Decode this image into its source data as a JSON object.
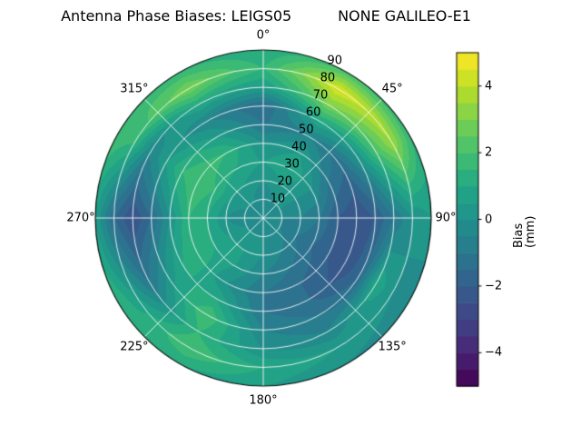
{
  "title": "Antenna Phase Biases: LEIGS05          NONE GALILEO-E1",
  "chart_data": {
    "type": "polar_contour",
    "title": "Antenna Phase Biases: LEIGS05          NONE GALILEO-E1",
    "theta_labels": [
      {
        "text": "0°",
        "angle": 0
      },
      {
        "text": "45°",
        "angle": 45
      },
      {
        "text": "90°",
        "angle": 90
      },
      {
        "text": "135°",
        "angle": 135
      },
      {
        "text": "180°",
        "angle": 180
      },
      {
        "text": "225°",
        "angle": 225
      },
      {
        "text": "270°",
        "angle": 270
      },
      {
        "text": "315°",
        "angle": 315
      }
    ],
    "radial_ticks": {
      "angle_deg": 22.5,
      "max": 90,
      "values": [
        10,
        20,
        30,
        40,
        50,
        60,
        70,
        80,
        90
      ],
      "labels": [
        "10",
        "20",
        "30",
        "40",
        "50",
        "60",
        "70",
        "80",
        "90"
      ]
    },
    "colorbar": {
      "label": "Bias (mm)",
      "min": -5,
      "max": 5,
      "level_step": 0.5,
      "ticks": [
        {
          "value": -4,
          "label": "−4"
        },
        {
          "value": -2,
          "label": "−2"
        },
        {
          "value": 0,
          "label": "0"
        },
        {
          "value": 2,
          "label": "2"
        },
        {
          "value": 4,
          "label": "4"
        }
      ]
    },
    "colormap": {
      "name": "viridis",
      "stops": [
        "#440154",
        "#482475",
        "#414487",
        "#355f8d",
        "#2a788e",
        "#21918c",
        "#22a884",
        "#44bf70",
        "#7ad151",
        "#bddf26",
        "#fde725"
      ]
    },
    "grid": {
      "azimuths_deg": [
        0,
        30,
        60,
        90,
        120,
        150,
        180,
        210,
        240,
        270,
        300,
        330
      ],
      "zeniths_deg": [
        0,
        10,
        20,
        30,
        40,
        50,
        60,
        70,
        80,
        90
      ],
      "bias_mm": [
        [
          -0.5,
          -0.5,
          0.0,
          0.5,
          0.0,
          -1.0,
          -1.5,
          0.5,
          1.5,
          1.0
        ],
        [
          -0.5,
          0.0,
          0.5,
          1.0,
          0.5,
          -0.5,
          1.0,
          3.0,
          4.5,
          2.0
        ],
        [
          -0.5,
          0.0,
          0.0,
          0.0,
          -1.0,
          -1.5,
          0.0,
          2.0,
          3.5,
          1.5
        ],
        [
          -0.5,
          -0.5,
          -0.5,
          -1.0,
          -2.0,
          -2.5,
          -2.0,
          -1.0,
          0.0,
          0.5
        ],
        [
          -0.5,
          -0.5,
          -1.0,
          -1.5,
          -2.0,
          -2.5,
          -1.5,
          1.0,
          0.0,
          -0.5
        ],
        [
          -0.5,
          0.0,
          -0.5,
          -1.0,
          -1.5,
          -1.5,
          -1.0,
          -0.5,
          0.5,
          0.0
        ],
        [
          -0.5,
          0.0,
          0.0,
          -0.5,
          -1.0,
          -1.0,
          -0.5,
          0.0,
          1.0,
          0.5
        ],
        [
          -0.5,
          0.0,
          0.5,
          0.5,
          0.0,
          1.0,
          2.0,
          1.5,
          2.0,
          1.0
        ],
        [
          -0.5,
          0.0,
          0.5,
          1.0,
          1.5,
          1.0,
          0.0,
          -1.0,
          0.5,
          1.5
        ],
        [
          -0.5,
          -0.5,
          0.0,
          1.0,
          1.5,
          0.0,
          -1.5,
          -2.5,
          -1.5,
          0.5
        ],
        [
          -0.5,
          0.0,
          0.5,
          1.5,
          2.0,
          1.5,
          0.5,
          -0.5,
          1.5,
          2.0
        ],
        [
          -0.5,
          0.0,
          0.5,
          1.0,
          1.5,
          0.5,
          -0.5,
          1.0,
          3.0,
          1.5
        ]
      ]
    }
  }
}
